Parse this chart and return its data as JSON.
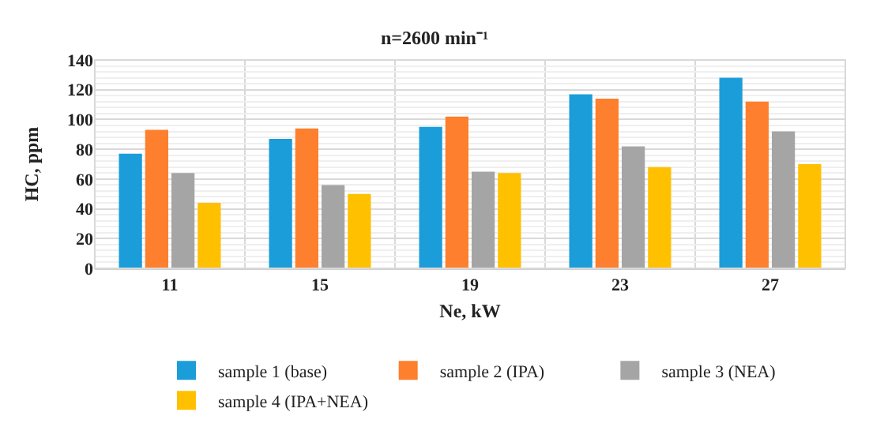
{
  "chart_data": {
    "type": "bar",
    "title": "n=2600 min⁻¹",
    "xlabel": "Ne, kW",
    "ylabel": "HC, ppm",
    "categories": [
      "11",
      "15",
      "19",
      "23",
      "27"
    ],
    "series": [
      {
        "name": "sample 1 (base)",
        "color": "#1b9dd9",
        "values": [
          77,
          87,
          95,
          117,
          128
        ]
      },
      {
        "name": "sample 2 (IPA)",
        "color": "#fe7f2d",
        "values": [
          93,
          94,
          102,
          114,
          112
        ]
      },
      {
        "name": "sample 3 (NEA)",
        "color": "#a5a5a5",
        "values": [
          64,
          56,
          65,
          82,
          92
        ]
      },
      {
        "name": "sample 4 (IPA+NEA)",
        "color": "#ffc000",
        "values": [
          44,
          50,
          64,
          68,
          70
        ]
      }
    ],
    "ylim": [
      0,
      140
    ],
    "yticks": [
      0,
      20,
      40,
      60,
      80,
      100,
      120,
      140
    ],
    "grid": true,
    "legend": "bottom"
  }
}
